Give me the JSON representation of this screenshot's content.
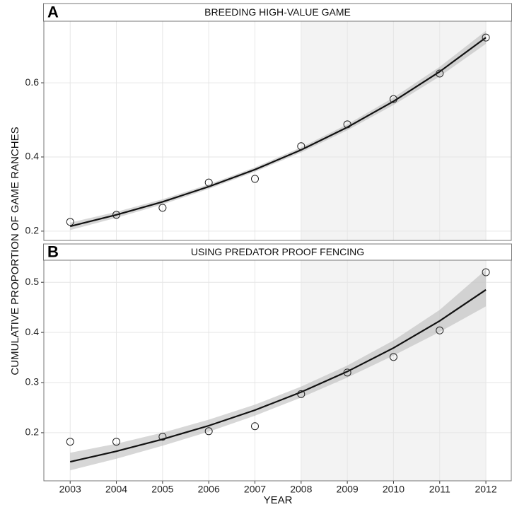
{
  "ylabel": "CUMULATIVE PROPORTION OF GAME RANCHES",
  "xlabel": "YEAR",
  "chart_data": [
    {
      "type": "scatter-fit",
      "letter": "A",
      "title": "BREEDING HIGH-VALUE GAME",
      "x": [
        2003,
        2004,
        2005,
        2006,
        2007,
        2008,
        2009,
        2010,
        2011,
        2012
      ],
      "values": [
        0.225,
        0.244,
        0.263,
        0.331,
        0.341,
        0.429,
        0.488,
        0.556,
        0.625,
        0.722
      ],
      "fit": [
        0.213,
        0.244,
        0.279,
        0.32,
        0.366,
        0.419,
        0.48,
        0.55,
        0.63,
        0.722
      ],
      "band_lower": [
        0.203,
        0.236,
        0.272,
        0.314,
        0.36,
        0.412,
        0.472,
        0.54,
        0.617,
        0.705
      ],
      "band_upper": [
        0.223,
        0.252,
        0.286,
        0.326,
        0.372,
        0.426,
        0.488,
        0.56,
        0.643,
        0.74
      ],
      "shade": [
        2008,
        2012
      ],
      "xlim": [
        2002.43,
        2012.55
      ],
      "xticks": [
        2003,
        2004,
        2005,
        2006,
        2007,
        2008,
        2009,
        2010,
        2011,
        2012
      ],
      "ylim": [
        0.175,
        0.766
      ],
      "yticks": [
        0.2,
        0.4,
        0.6
      ],
      "grid": true
    },
    {
      "type": "scatter-fit",
      "letter": "B",
      "title": "USING PREDATOR PROOF FENCING",
      "x": [
        2003,
        2004,
        2005,
        2006,
        2007,
        2008,
        2009,
        2010,
        2011,
        2012
      ],
      "values": [
        0.182,
        0.182,
        0.192,
        0.203,
        0.213,
        0.277,
        0.32,
        0.351,
        0.404,
        0.52
      ],
      "fit": [
        0.142,
        0.163,
        0.187,
        0.214,
        0.245,
        0.281,
        0.322,
        0.369,
        0.423,
        0.485
      ],
      "band_lower": [
        0.125,
        0.148,
        0.174,
        0.202,
        0.234,
        0.27,
        0.31,
        0.354,
        0.401,
        0.452
      ],
      "band_upper": [
        0.16,
        0.178,
        0.2,
        0.226,
        0.256,
        0.292,
        0.334,
        0.384,
        0.445,
        0.525
      ],
      "shade": [
        2008,
        2012
      ],
      "xlim": [
        2002.43,
        2012.55
      ],
      "xticks": [
        2003,
        2004,
        2005,
        2006,
        2007,
        2008,
        2009,
        2010,
        2011,
        2012
      ],
      "ylim": [
        0.104,
        0.544
      ],
      "yticks": [
        0.2,
        0.3,
        0.4,
        0.5
      ],
      "grid": true
    }
  ]
}
